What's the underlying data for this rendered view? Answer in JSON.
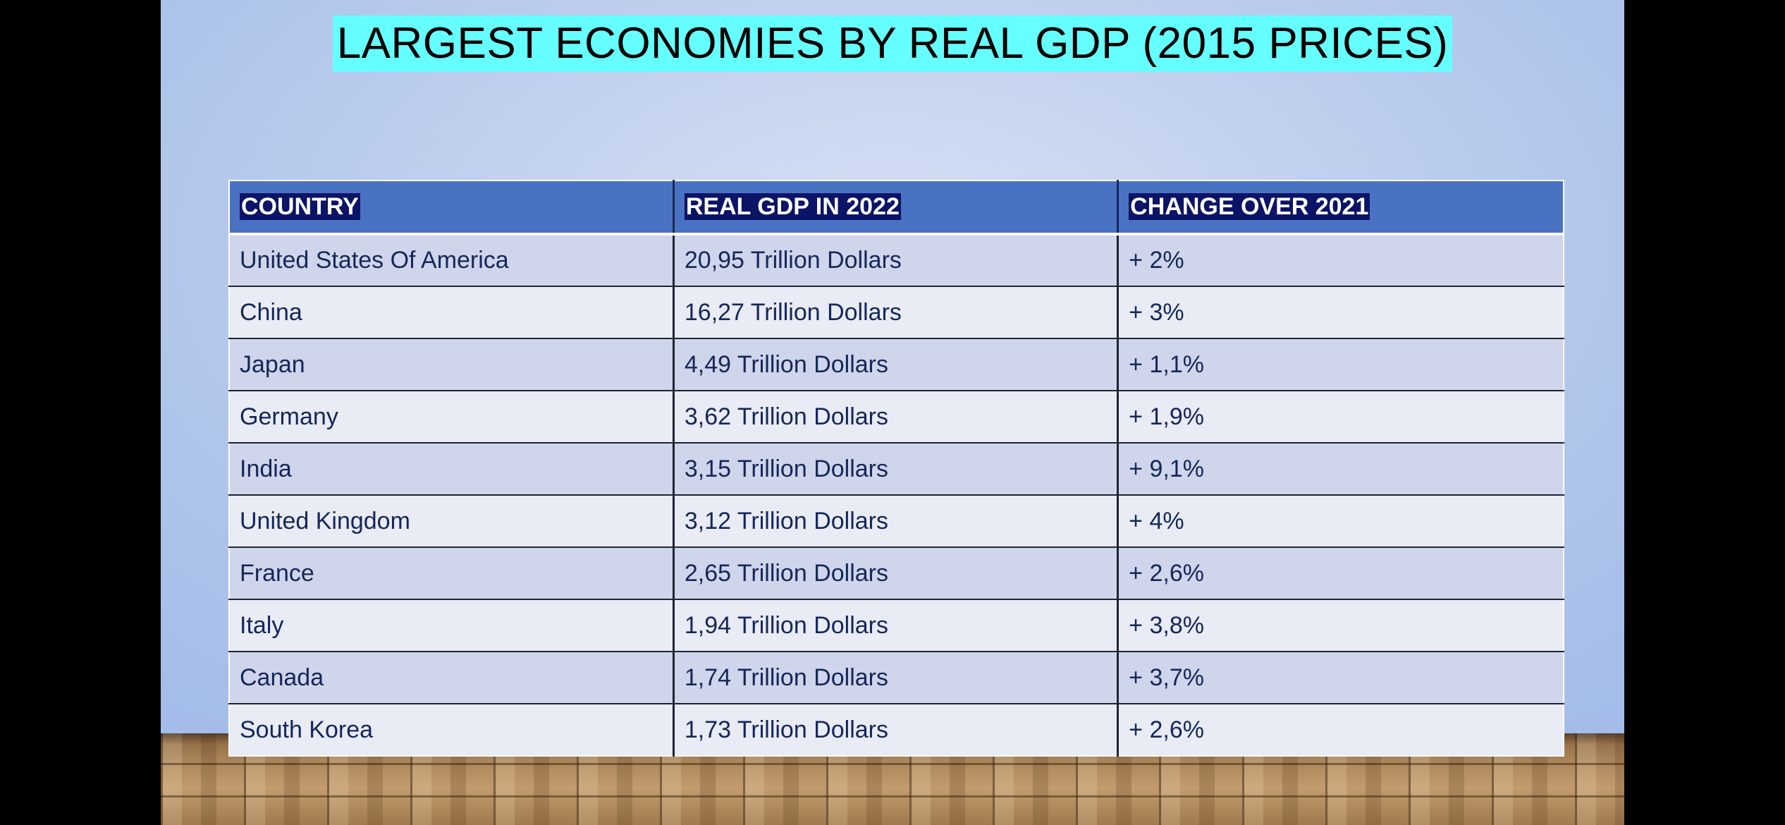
{
  "slide": {
    "title": "LARGEST ECONOMIES BY REAL GDP (2015 PRICES)"
  },
  "table": {
    "headers": [
      "COUNTRY",
      "REAL GDP IN 2022",
      "CHANGE OVER 2021"
    ],
    "rows": [
      [
        "United States Of America",
        "20,95 Trillion Dollars",
        "+ 2%"
      ],
      [
        "China",
        "16,27 Trillion Dollars",
        "+ 3%"
      ],
      [
        "Japan",
        "4,49 Trillion Dollars",
        "+ 1,1%"
      ],
      [
        "Germany",
        "3,62 Trillion Dollars",
        "+ 1,9%"
      ],
      [
        "India",
        "3,15 Trillion Dollars",
        "+ 9,1%"
      ],
      [
        "United Kingdom",
        "3,12 Trillion Dollars",
        "+ 4%"
      ],
      [
        "France",
        "2,65 Trillion Dollars",
        "+ 2,6%"
      ],
      [
        "Italy",
        "1,94 Trillion Dollars",
        "+ 3,8%"
      ],
      [
        "Canada",
        "1,74 Trillion Dollars",
        "+ 3,7%"
      ],
      [
        "South Korea",
        "1,73 Trillion Dollars",
        "+ 2,6%"
      ]
    ]
  },
  "colors": {
    "title_highlight": "#66ffff",
    "header_background": "#4a72c2",
    "header_text_highlight": "#0b1466",
    "row_odd": "#cfd5ea",
    "row_even": "#e9ebf5",
    "cell_text": "#14275a"
  }
}
